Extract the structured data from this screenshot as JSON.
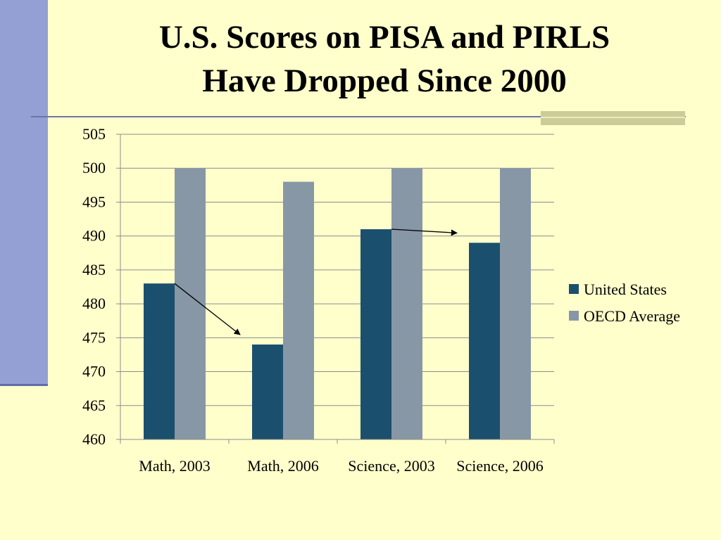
{
  "slide": {
    "title_line1": "U.S. Scores on PISA and PIRLS",
    "title_line2": "Have Dropped Since 2000"
  },
  "colors": {
    "background": "#ffffcc",
    "united_states": "#1b4f6e",
    "oecd_average": "#8797a6",
    "left_bar": "#94a0d4",
    "accent": "#cccc99"
  },
  "chart_data": {
    "type": "bar",
    "categories": [
      "Math, 2003",
      "Math, 2006",
      "Science, 2003",
      "Science, 2006"
    ],
    "series": [
      {
        "name": "United States",
        "values": [
          483,
          474,
          491,
          489
        ]
      },
      {
        "name": "OECD Average",
        "values": [
          500,
          498,
          500,
          500
        ]
      }
    ],
    "ylim": [
      460,
      505
    ],
    "yticks": [
      460,
      465,
      470,
      475,
      480,
      485,
      490,
      495,
      500,
      505
    ],
    "grid": true,
    "legend": "right",
    "annotations": [
      {
        "type": "arrow",
        "from": [
          "Math, 2003",
          483
        ],
        "to": [
          "Math, 2006",
          474
        ]
      },
      {
        "type": "arrow",
        "from": [
          "Science, 2003",
          491
        ],
        "to": [
          "Science, 2006",
          489
        ]
      }
    ]
  }
}
